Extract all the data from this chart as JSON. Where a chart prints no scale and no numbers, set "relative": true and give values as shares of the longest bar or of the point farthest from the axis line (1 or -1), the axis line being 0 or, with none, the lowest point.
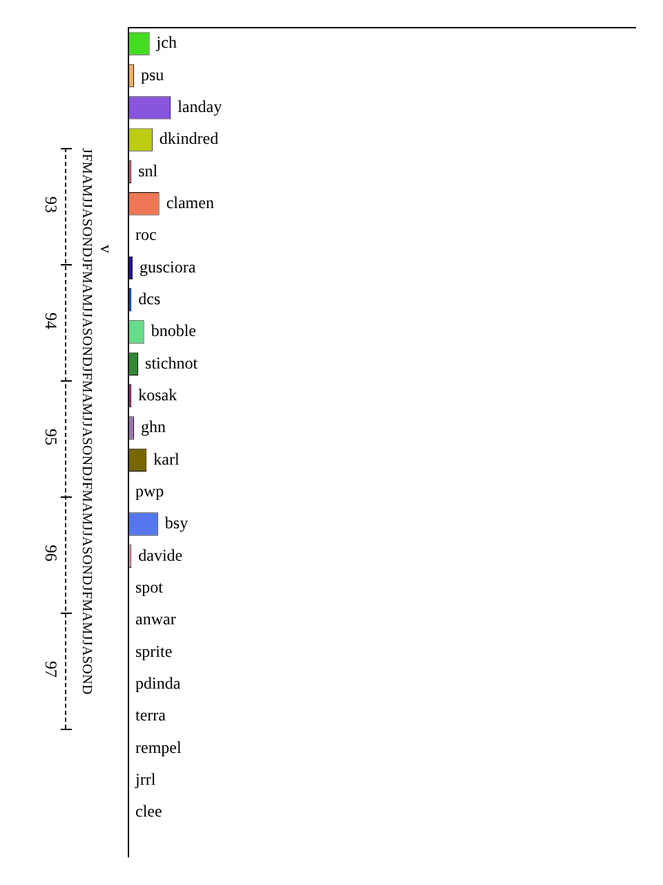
{
  "chart_data": {
    "type": "bar",
    "orientation": "horizontal",
    "relative": true,
    "categories": [
      "jch",
      "psu",
      "landay",
      "dkindred",
      "snl",
      "clamen",
      "roc",
      "gusciora",
      "dcs",
      "bnoble",
      "stichnot",
      "kosak",
      "ghn",
      "karl",
      "pwp",
      "bsy",
      "davide",
      "spot",
      "anwar",
      "sprite",
      "pdinda",
      "terra",
      "rempel",
      "jrrl",
      "clee"
    ],
    "values": [
      0.5,
      0.13,
      1,
      0.57,
      0.07,
      0.73,
      0,
      0.1,
      0.07,
      0.37,
      0.23,
      0.07,
      0.13,
      0.43,
      0,
      0.7,
      0.07,
      0,
      0,
      0,
      0,
      0,
      0,
      0,
      0
    ],
    "colors": [
      "#44dd22",
      "#f0b060",
      "#8855dd",
      "#bbcc11",
      "#dd5566",
      "#ee7755",
      "#ffffff",
      "#221199",
      "#1144dd",
      "#66dd88",
      "#338833",
      "#aa2277",
      "#9977aa",
      "#776600",
      "#ffffff",
      "#5577ee",
      "#dd99aa",
      "#ffffff",
      "#ffffff",
      "#ffffff",
      "#ffffff",
      "#ffffff",
      "#ffffff",
      "#ffffff",
      "#ffffff"
    ],
    "annotations": [
      "JFMAMJJASONDJFMAMJJASONDJFMAMJJASONDJFMAMJJASONDJFMAMJJASOND",
      "93",
      "94",
      "95",
      "96",
      "97",
      "v"
    ]
  }
}
